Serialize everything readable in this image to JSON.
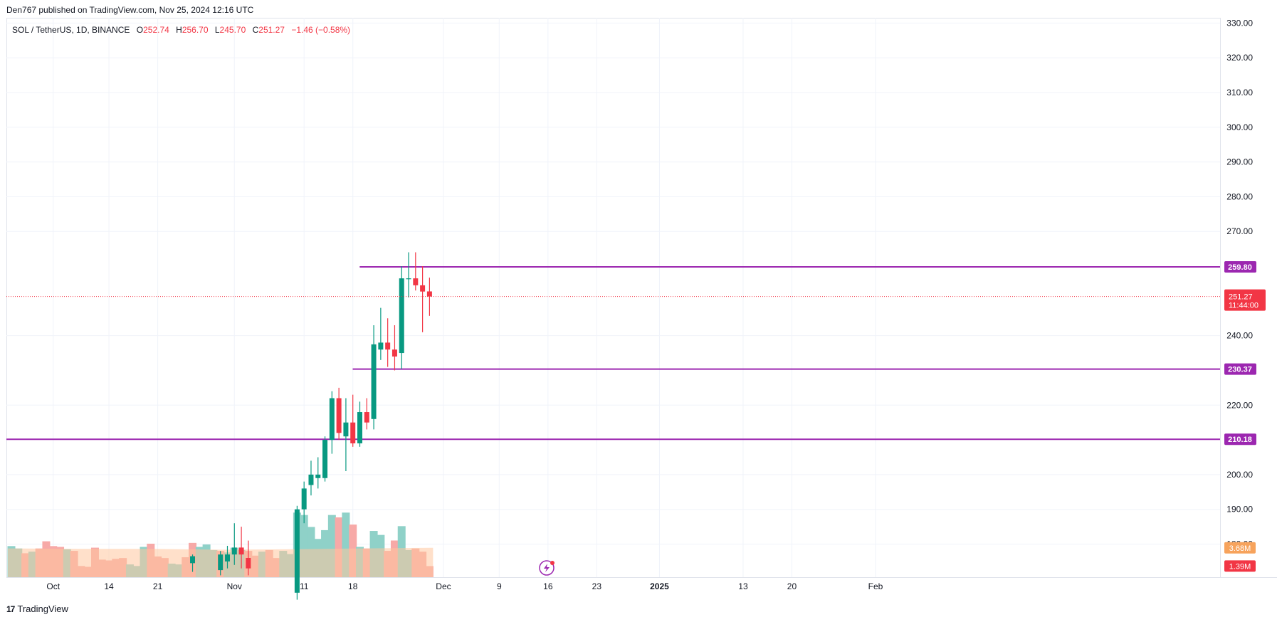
{
  "header": {
    "publisher": "Den767 published on TradingView.com, Nov 25, 2024 12:16 UTC"
  },
  "footer": {
    "logo_mark": "17",
    "logo_text": "TradingView"
  },
  "colors": {
    "up": "#089981",
    "down": "#f23645",
    "vol_up": "#8fd1c8",
    "vol_down": "#f7a9a7",
    "vol_ma": "#ffc79e",
    "hline": "#9c27b0",
    "grid": "#f0f3fa",
    "current": "#f23645",
    "vol_ma_label": "#f7a35c"
  },
  "chart_data": {
    "type": "candlestick",
    "symbol": "SOL / TetherUS",
    "interval": "1D",
    "exchange": "BINANCE",
    "ohlc_text": {
      "o_label": "O",
      "o": "252.74",
      "h_label": "H",
      "h": "256.70",
      "l_label": "L",
      "l": "245.70",
      "c_label": "C",
      "c": "251.27",
      "chg": "−1.46 (−0.58%)"
    },
    "y_range": [
      172,
      331
    ],
    "y_ticks": [
      "330.00",
      "320.00",
      "310.00",
      "300.00",
      "290.00",
      "280.00",
      "270.00",
      "240.00",
      "220.00",
      "200.00",
      "190.00",
      "180.00"
    ],
    "y_tick_values": [
      330,
      320,
      310,
      300,
      290,
      280,
      270,
      240,
      220,
      200,
      190,
      180
    ],
    "x_labels": [
      {
        "text": "Oct",
        "day": 6
      },
      {
        "text": "14",
        "day": 14
      },
      {
        "text": "21",
        "day": 21
      },
      {
        "text": "Nov",
        "day": 32
      },
      {
        "text": "11",
        "day": 42
      },
      {
        "text": "18",
        "day": 49
      },
      {
        "text": "Dec",
        "day": 62
      },
      {
        "text": "9",
        "day": 70
      },
      {
        "text": "16",
        "day": 77
      },
      {
        "text": "23",
        "day": 84
      },
      {
        "text": "2025",
        "day": 93,
        "bold": true
      },
      {
        "text": "13",
        "day": 105
      },
      {
        "text": "20",
        "day": 112
      },
      {
        "text": "Feb",
        "day": 124
      }
    ],
    "horizontal_levels": [
      {
        "label": "259.80",
        "value": 259.8,
        "from_day": 51
      },
      {
        "label": "230.37",
        "value": 230.37,
        "from_day": 50
      },
      {
        "label": "210.18",
        "value": 210.18,
        "from_day": 0
      }
    ],
    "current_price": {
      "label": "251.27",
      "value": 251.27,
      "countdown": "11:44:00"
    },
    "volume_labels": [
      {
        "label": "3.68M",
        "kind": "ma",
        "value": 3.68
      },
      {
        "label": "1.39M",
        "kind": "vol",
        "value": 1.39
      }
    ],
    "candles": [
      {
        "d": 26,
        "o": 174.5,
        "h": 177,
        "l": 172,
        "c": 176.5
      },
      {
        "d": 30,
        "o": 172.5,
        "h": 178,
        "l": 171,
        "c": 177
      },
      {
        "d": 31,
        "o": 175,
        "h": 179.5,
        "l": 173,
        "c": 177
      },
      {
        "d": 32,
        "o": 177,
        "h": 186,
        "l": 174,
        "c": 179
      },
      {
        "d": 33,
        "o": 179,
        "h": 185,
        "l": 173,
        "c": 177
      },
      {
        "d": 34,
        "o": 176,
        "h": 181,
        "l": 171,
        "c": 173
      },
      {
        "d": 41,
        "o": 166,
        "h": 191,
        "l": 164,
        "c": 190
      },
      {
        "d": 42,
        "o": 190,
        "h": 198,
        "l": 186,
        "c": 196
      },
      {
        "d": 43,
        "o": 197,
        "h": 204,
        "l": 194,
        "c": 200
      },
      {
        "d": 44,
        "o": 199,
        "h": 205,
        "l": 196,
        "c": 200
      },
      {
        "d": 45,
        "o": 199,
        "h": 211,
        "l": 198,
        "c": 210
      },
      {
        "d": 46,
        "o": 210,
        "h": 224,
        "l": 206,
        "c": 222
      },
      {
        "d": 47,
        "o": 222,
        "h": 225,
        "l": 210,
        "c": 212
      },
      {
        "d": 48,
        "o": 211,
        "h": 222,
        "l": 201,
        "c": 215
      },
      {
        "d": 49,
        "o": 215,
        "h": 223,
        "l": 208,
        "c": 209
      },
      {
        "d": 50,
        "o": 209,
        "h": 221,
        "l": 208,
        "c": 218
      },
      {
        "d": 51,
        "o": 218,
        "h": 222,
        "l": 213,
        "c": 215
      },
      {
        "d": 52,
        "o": 216,
        "h": 243,
        "l": 213,
        "c": 237.5
      },
      {
        "d": 53,
        "o": 236,
        "h": 248,
        "l": 233,
        "c": 238
      },
      {
        "d": 54,
        "o": 238,
        "h": 245,
        "l": 231,
        "c": 236
      },
      {
        "d": 55,
        "o": 236,
        "h": 243,
        "l": 230,
        "c": 234
      },
      {
        "d": 56,
        "o": 235,
        "h": 260,
        "l": 230.4,
        "c": 256.5
      },
      {
        "d": 57,
        "o": 256.5,
        "h": 264,
        "l": 251,
        "c": 256.5
      },
      {
        "d": 58,
        "o": 256.5,
        "h": 264,
        "l": 253,
        "c": 254.5
      },
      {
        "d": 59,
        "o": 254.5,
        "h": 260,
        "l": 241,
        "c": 252.7
      },
      {
        "d": 60,
        "o": 252.74,
        "h": 256.7,
        "l": 245.7,
        "c": 251.27
      }
    ],
    "volume": [
      {
        "d": 0,
        "v": 3.9,
        "up": true
      },
      {
        "d": 1,
        "v": 3.6,
        "up": true
      },
      {
        "d": 2,
        "v": 3.0,
        "up": false
      },
      {
        "d": 3,
        "v": 3.2,
        "up": true
      },
      {
        "d": 4,
        "v": 3.6,
        "up": false
      },
      {
        "d": 5,
        "v": 4.5,
        "up": false
      },
      {
        "d": 6,
        "v": 3.9,
        "up": false
      },
      {
        "d": 7,
        "v": 3.8,
        "up": false
      },
      {
        "d": 8,
        "v": 3.5,
        "up": true
      },
      {
        "d": 9,
        "v": 3.3,
        "up": false
      },
      {
        "d": 10,
        "v": 1.4,
        "up": false
      },
      {
        "d": 11,
        "v": 1.3,
        "up": false
      },
      {
        "d": 12,
        "v": 3.7,
        "up": false
      },
      {
        "d": 13,
        "v": 2.2,
        "up": false
      },
      {
        "d": 14,
        "v": 2.1,
        "up": false
      },
      {
        "d": 15,
        "v": 2.3,
        "up": false
      },
      {
        "d": 16,
        "v": 2.4,
        "up": false
      },
      {
        "d": 17,
        "v": 1.6,
        "up": true
      },
      {
        "d": 18,
        "v": 1.4,
        "up": true
      },
      {
        "d": 19,
        "v": 3.8,
        "up": true
      },
      {
        "d": 20,
        "v": 4.2,
        "up": false
      },
      {
        "d": 21,
        "v": 2.6,
        "up": false
      },
      {
        "d": 22,
        "v": 2.4,
        "up": false
      },
      {
        "d": 23,
        "v": 1.7,
        "up": true
      },
      {
        "d": 24,
        "v": 1.6,
        "up": true
      },
      {
        "d": 25,
        "v": 2.5,
        "up": false
      },
      {
        "d": 26,
        "v": 4.3,
        "up": false
      },
      {
        "d": 27,
        "v": 3.8,
        "up": true
      },
      {
        "d": 28,
        "v": 4.1,
        "up": true
      },
      {
        "d": 29,
        "v": 3.4,
        "up": true
      },
      {
        "d": 30,
        "v": 3.3,
        "up": false
      },
      {
        "d": 31,
        "v": 3.1,
        "up": true
      },
      {
        "d": 32,
        "v": 3.7,
        "up": true
      },
      {
        "d": 33,
        "v": 3.4,
        "up": true
      },
      {
        "d": 34,
        "v": 3.3,
        "up": false
      },
      {
        "d": 35,
        "v": 2.7,
        "up": false
      },
      {
        "d": 36,
        "v": 3.2,
        "up": true
      },
      {
        "d": 37,
        "v": 3.4,
        "up": false
      },
      {
        "d": 38,
        "v": 2.4,
        "up": false
      },
      {
        "d": 39,
        "v": 3.3,
        "up": true
      },
      {
        "d": 40,
        "v": 2.9,
        "up": true
      },
      {
        "d": 41,
        "v": 8.1,
        "up": true
      },
      {
        "d": 42,
        "v": 7.8,
        "up": true
      },
      {
        "d": 43,
        "v": 6.3,
        "up": true
      },
      {
        "d": 44,
        "v": 4.8,
        "up": true
      },
      {
        "d": 45,
        "v": 5.9,
        "up": true
      },
      {
        "d": 46,
        "v": 7.8,
        "up": true
      },
      {
        "d": 47,
        "v": 7.5,
        "up": false
      },
      {
        "d": 48,
        "v": 8.1,
        "up": true
      },
      {
        "d": 49,
        "v": 6.6,
        "up": false
      },
      {
        "d": 50,
        "v": 3.8,
        "up": true
      },
      {
        "d": 51,
        "v": 3.6,
        "up": false
      },
      {
        "d": 52,
        "v": 5.8,
        "up": true
      },
      {
        "d": 53,
        "v": 5.3,
        "up": true
      },
      {
        "d": 54,
        "v": 3.3,
        "up": false
      },
      {
        "d": 55,
        "v": 4.6,
        "up": false
      },
      {
        "d": 56,
        "v": 6.4,
        "up": true
      },
      {
        "d": 57,
        "v": 3.4,
        "up": true
      },
      {
        "d": 58,
        "v": 3.6,
        "up": false
      },
      {
        "d": 59,
        "v": 3.2,
        "up": false
      },
      {
        "d": 60,
        "v": 1.39,
        "up": false
      }
    ],
    "volume_ma": [
      {
        "d": 0,
        "v": 3.6
      },
      {
        "d": 10,
        "v": 3.55
      },
      {
        "d": 20,
        "v": 3.55
      },
      {
        "d": 30,
        "v": 3.45
      },
      {
        "d": 40,
        "v": 3.5
      },
      {
        "d": 50,
        "v": 3.6
      },
      {
        "d": 60,
        "v": 3.68
      }
    ],
    "volume_max": 16
  }
}
